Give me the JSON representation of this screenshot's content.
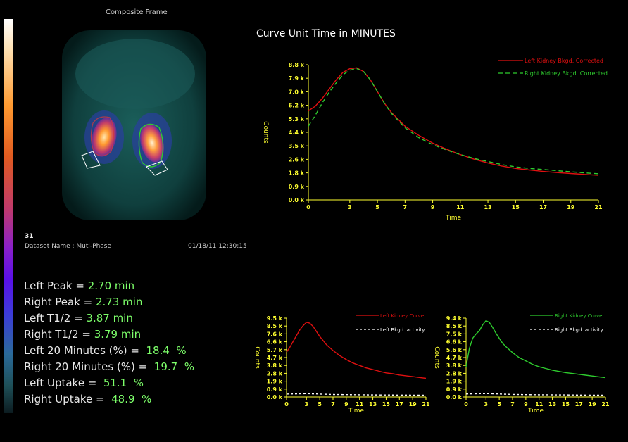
{
  "composite": {
    "title": "Composite Frame",
    "frame_number": "31",
    "dataset_label": "Dataset Name :  Muti-Phase",
    "datetime": "01/18/11 12:30:15"
  },
  "colorbar": {
    "colors": [
      "#ffffff",
      "#ff9a30",
      "#c03a6a",
      "#5a10e8",
      "#2a6a9a",
      "#0c1c20"
    ]
  },
  "stats": [
    {
      "label": "Left Peak = ",
      "value": "2.70 min"
    },
    {
      "label": "Right Peak = ",
      "value": "2.73 min"
    },
    {
      "label": "Left T1/2 = ",
      "value": "3.87 min"
    },
    {
      "label": "Right T1/2 = ",
      "value": "3.79 min"
    },
    {
      "label": "Left 20 Minutes (%) =  ",
      "value": "18.4  %"
    },
    {
      "label": "Right 20 Minutes (%) =  ",
      "value": "19.7  %"
    },
    {
      "label": "Left Uptake =  ",
      "value": "51.1  %"
    },
    {
      "label": "Right Uptake =  ",
      "value": "48.9  %"
    }
  ],
  "main_title": "Curve Unit Time in MINUTES",
  "chart_data": [
    {
      "type": "line",
      "xlabel": "Time",
      "ylabel": "Counts",
      "xticks": [
        "0",
        "3",
        "5",
        "7",
        "9",
        "11",
        "13",
        "15",
        "17",
        "19",
        "21"
      ],
      "yticks": [
        "0.0 k",
        "0.9 k",
        "1.8 k",
        "2.6 k",
        "3.5 k",
        "4.4 k",
        "5.3 k",
        "6.2 k",
        "7.0 k",
        "7.9 k",
        "8.8 k"
      ],
      "xlim": [
        0,
        21
      ],
      "ylim": [
        0,
        8.8
      ],
      "legend": [
        "Left Kidney Bkgd. Corrected",
        "Right Kidney Bkgd. Corrected"
      ],
      "series": [
        {
          "name": "Left Kidney Bkgd. Corrected",
          "color": "#e01010",
          "dash": "",
          "x": [
            0,
            0.5,
            1,
            1.5,
            2,
            2.5,
            3,
            3.5,
            4,
            4.5,
            5,
            5.5,
            6,
            7,
            8,
            9,
            10,
            11,
            12,
            13,
            14,
            15,
            16,
            17,
            18,
            19,
            20,
            21
          ],
          "y": [
            5.8,
            6.1,
            6.6,
            7.2,
            7.8,
            8.3,
            8.55,
            8.6,
            8.35,
            7.8,
            7.05,
            6.3,
            5.7,
            4.8,
            4.2,
            3.7,
            3.3,
            2.95,
            2.65,
            2.4,
            2.2,
            2.05,
            1.95,
            1.85,
            1.78,
            1.72,
            1.66,
            1.6
          ]
        },
        {
          "name": "Right Kidney Bkgd. Corrected",
          "color": "#2ecc2e",
          "dash": "6,4",
          "x": [
            0,
            0.5,
            1,
            1.5,
            2,
            2.5,
            3,
            3.5,
            4,
            4.5,
            5,
            5.5,
            6,
            7,
            8,
            9,
            10,
            11,
            12,
            13,
            14,
            15,
            16,
            17,
            18,
            19,
            20,
            21
          ],
          "y": [
            4.8,
            5.5,
            6.3,
            7.0,
            7.6,
            8.15,
            8.45,
            8.55,
            8.35,
            7.8,
            7.05,
            6.3,
            5.65,
            4.7,
            4.05,
            3.6,
            3.25,
            2.95,
            2.7,
            2.5,
            2.3,
            2.15,
            2.05,
            1.98,
            1.9,
            1.83,
            1.76,
            1.7
          ]
        }
      ]
    },
    {
      "type": "line",
      "xlabel": "Time",
      "ylabel": "Counts",
      "xticks": [
        "0",
        "3",
        "5",
        "7",
        "9",
        "11",
        "13",
        "15",
        "17",
        "19",
        "21"
      ],
      "yticks": [
        "0.0 k",
        "0.9 k",
        "1.9 k",
        "2.8 k",
        "3.8 k",
        "4.7 k",
        "5.7 k",
        "6.6 k",
        "7.6 k",
        "8.5 k",
        "9.5 k"
      ],
      "xlim": [
        0,
        21
      ],
      "ylim": [
        0,
        9.5
      ],
      "legend": [
        "Left Kidney Curve",
        "Left Bkgd. activity"
      ],
      "series": [
        {
          "name": "Left Kidney Curve",
          "color": "#e01010",
          "dash": "",
          "x": [
            0,
            0.5,
            1,
            1.5,
            2,
            2.5,
            3,
            3.5,
            4,
            4.5,
            5,
            5.5,
            6,
            7,
            8,
            9,
            10,
            11,
            12,
            13,
            14,
            15,
            16,
            17,
            18,
            19,
            20,
            21
          ],
          "y": [
            5.4,
            6.0,
            6.7,
            7.4,
            8.1,
            8.6,
            9.0,
            8.9,
            8.5,
            7.9,
            7.3,
            6.8,
            6.3,
            5.6,
            5.0,
            4.5,
            4.1,
            3.8,
            3.5,
            3.3,
            3.1,
            2.9,
            2.8,
            2.65,
            2.55,
            2.45,
            2.35,
            2.25
          ]
        },
        {
          "name": "Left Bkgd. activity",
          "color": "#ffffff",
          "dash": "3,3",
          "x": [
            0,
            3,
            5,
            7,
            9,
            11,
            13,
            15,
            17,
            19,
            21
          ],
          "y": [
            0.35,
            0.4,
            0.35,
            0.3,
            0.28,
            0.26,
            0.25,
            0.24,
            0.23,
            0.22,
            0.22
          ]
        }
      ]
    },
    {
      "type": "line",
      "xlabel": "Time",
      "ylabel": "Counts",
      "xticks": [
        "0",
        "3",
        "5",
        "7",
        "9",
        "11",
        "13",
        "15",
        "17",
        "19",
        "21"
      ],
      "yticks": [
        "0.0 k",
        "0.9 k",
        "1.9 k",
        "2.8 k",
        "3.8 k",
        "4.7 k",
        "5.6 k",
        "6.6 k",
        "7.5 k",
        "8.5 k",
        "9.4 k"
      ],
      "xlim": [
        0,
        21
      ],
      "ylim": [
        0,
        9.4
      ],
      "legend": [
        "Right Kidney Curve",
        "Right Bkgd. activity"
      ],
      "series": [
        {
          "name": "Right Kidney Curve",
          "color": "#2ecc2e",
          "dash": "",
          "x": [
            0,
            0.5,
            1,
            1.5,
            2,
            2.5,
            3,
            3.5,
            4,
            4.5,
            5,
            5.5,
            6,
            7,
            8,
            9,
            10,
            11,
            12,
            13,
            14,
            15,
            16,
            17,
            18,
            19,
            20,
            21
          ],
          "y": [
            3.6,
            5.8,
            7.0,
            7.5,
            7.9,
            8.6,
            9.1,
            8.9,
            8.3,
            7.6,
            7.0,
            6.4,
            6.0,
            5.3,
            4.7,
            4.3,
            3.9,
            3.6,
            3.4,
            3.2,
            3.05,
            2.9,
            2.8,
            2.7,
            2.6,
            2.5,
            2.4,
            2.3
          ]
        },
        {
          "name": "Right Bkgd. activity",
          "color": "#ffffff",
          "dash": "3,3",
          "x": [
            0,
            3,
            5,
            7,
            9,
            11,
            13,
            15,
            17,
            19,
            21
          ],
          "y": [
            0.35,
            0.4,
            0.35,
            0.3,
            0.28,
            0.26,
            0.25,
            0.24,
            0.23,
            0.22,
            0.22
          ]
        }
      ]
    }
  ]
}
